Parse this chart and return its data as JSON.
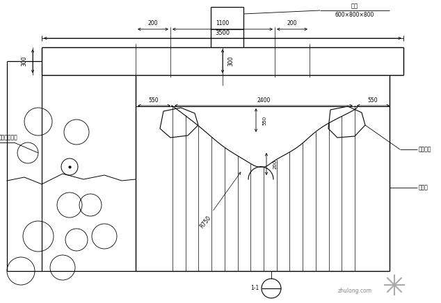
{
  "bg_color": "#ffffff",
  "line_color": "#000000",
  "title_label": "泉峦",
  "subtitle_label": "600×800×800",
  "label_200_1": "200",
  "label_1100": "1100",
  "label_200_2": "200",
  "label_3500": "3500",
  "label_300_v": "300",
  "label_300_h": "300",
  "label_550_l": "550",
  "label_2400": "2400",
  "label_550_r": "550",
  "label_550_v": "550",
  "label_200_v": "200",
  "label_r750": "R750",
  "label_left": "各类花源电路",
  "label_right1": "成品陶罐",
  "label_right2": "水槽简",
  "label_section": "1-1",
  "watermark": "zhulong.com"
}
